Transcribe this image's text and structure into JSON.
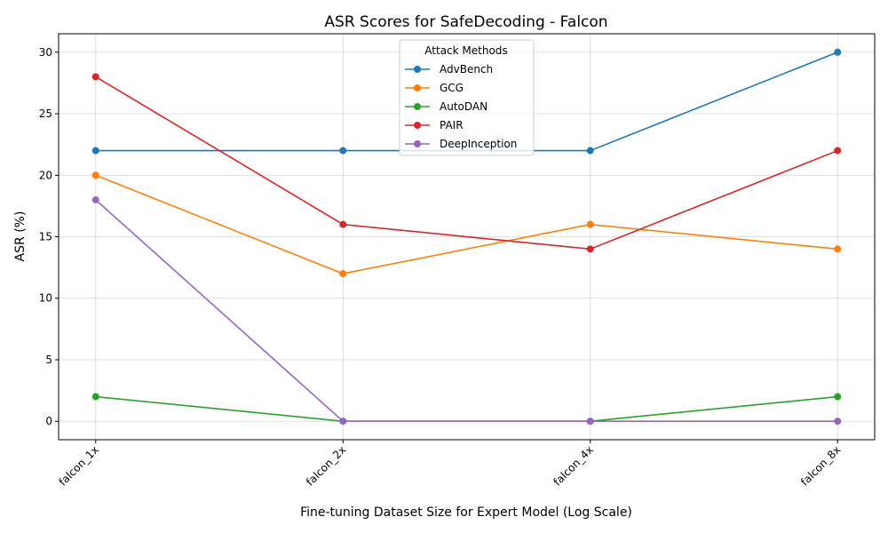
{
  "chart_data": {
    "type": "line",
    "title": "ASR Scores for SafeDecoding - Falcon",
    "xlabel": "Fine-tuning Dataset Size for Expert Model (Log Scale)",
    "ylabel": "ASR (%)",
    "categories": [
      "falcon_1x",
      "falcon_2x",
      "falcon_4x",
      "falcon_8x"
    ],
    "ylim": [
      -1.5,
      31.5
    ],
    "yticks": [
      0,
      5,
      10,
      15,
      20,
      25,
      30
    ],
    "grid": true,
    "legend": {
      "title": "Attack Methods",
      "placement": "top-center"
    },
    "series": [
      {
        "name": "AdvBench",
        "color": "#1f77b4",
        "values": [
          22,
          22,
          22,
          30
        ]
      },
      {
        "name": "GCG",
        "color": "#ff7f0e",
        "values": [
          20,
          12,
          16,
          14
        ]
      },
      {
        "name": "AutoDAN",
        "color": "#2ca02c",
        "values": [
          2,
          0,
          0,
          2
        ]
      },
      {
        "name": "PAIR",
        "color": "#d62728",
        "values": [
          28,
          16,
          14,
          22
        ]
      },
      {
        "name": "DeepInception",
        "color": "#9467bd",
        "values": [
          18,
          0,
          0,
          0
        ]
      }
    ]
  }
}
